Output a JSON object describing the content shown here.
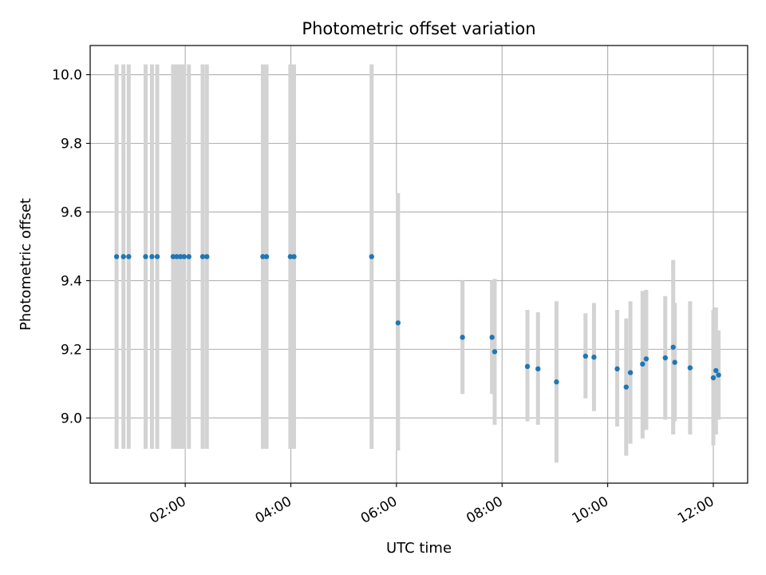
{
  "chart_data": {
    "type": "scatter",
    "title": "Photometric offset variation",
    "xlabel": "UTC time",
    "ylabel": "Photometric offset",
    "x_unit": "hours UTC",
    "xlim": [
      0.2,
      12.65
    ],
    "ylim": [
      8.81,
      10.085
    ],
    "grid": true,
    "x_ticks": [
      {
        "value": 2,
        "label": "02:00"
      },
      {
        "value": 4,
        "label": "04:00"
      },
      {
        "value": 6,
        "label": "06:00"
      },
      {
        "value": 8,
        "label": "08:00"
      },
      {
        "value": 10,
        "label": "10:00"
      },
      {
        "value": 12,
        "label": "12:00"
      }
    ],
    "y_ticks": [
      {
        "value": 9.0,
        "label": "9.0"
      },
      {
        "value": 9.2,
        "label": "9.2"
      },
      {
        "value": 9.4,
        "label": "9.4"
      },
      {
        "value": 9.6,
        "label": "9.6"
      },
      {
        "value": 9.8,
        "label": "9.8"
      },
      {
        "value": 10.0,
        "label": "10.0"
      }
    ],
    "colors": {
      "marker": "#1f77b4",
      "errorbar": "#d3d3d3",
      "grid": "#b0b0b0"
    },
    "points": [
      {
        "x": 0.7,
        "y": 9.47,
        "ymin": 8.91,
        "ymax": 10.03
      },
      {
        "x": 0.83,
        "y": 9.47,
        "ymin": 8.91,
        "ymax": 10.03
      },
      {
        "x": 0.93,
        "y": 9.47,
        "ymin": 8.91,
        "ymax": 10.03
      },
      {
        "x": 1.25,
        "y": 9.47,
        "ymin": 8.91,
        "ymax": 10.03
      },
      {
        "x": 1.37,
        "y": 9.47,
        "ymin": 8.91,
        "ymax": 10.03
      },
      {
        "x": 1.47,
        "y": 9.47,
        "ymin": 8.91,
        "ymax": 10.03
      },
      {
        "x": 1.77,
        "y": 9.47,
        "ymin": 8.91,
        "ymax": 10.03
      },
      {
        "x": 1.84,
        "y": 9.47,
        "ymin": 8.91,
        "ymax": 10.03
      },
      {
        "x": 1.91,
        "y": 9.47,
        "ymin": 8.91,
        "ymax": 10.03
      },
      {
        "x": 1.98,
        "y": 9.47,
        "ymin": 8.91,
        "ymax": 10.03
      },
      {
        "x": 2.07,
        "y": 9.47,
        "ymin": 8.91,
        "ymax": 10.03
      },
      {
        "x": 2.33,
        "y": 9.47,
        "ymin": 8.91,
        "ymax": 10.03
      },
      {
        "x": 2.41,
        "y": 9.47,
        "ymin": 8.91,
        "ymax": 10.03
      },
      {
        "x": 3.47,
        "y": 9.47,
        "ymin": 8.91,
        "ymax": 10.03
      },
      {
        "x": 3.54,
        "y": 9.47,
        "ymin": 8.91,
        "ymax": 10.03
      },
      {
        "x": 3.99,
        "y": 9.47,
        "ymin": 8.91,
        "ymax": 10.03
      },
      {
        "x": 4.06,
        "y": 9.47,
        "ymin": 8.91,
        "ymax": 10.03
      },
      {
        "x": 5.53,
        "y": 9.47,
        "ymin": 8.91,
        "ymax": 10.03
      },
      {
        "x": 6.03,
        "y": 9.277,
        "ymin": 8.905,
        "ymax": 9.655
      },
      {
        "x": 7.25,
        "y": 9.235,
        "ymin": 9.07,
        "ymax": 9.4
      },
      {
        "x": 7.81,
        "y": 9.235,
        "ymin": 9.07,
        "ymax": 9.4
      },
      {
        "x": 7.86,
        "y": 9.193,
        "ymin": 8.98,
        "ymax": 9.405
      },
      {
        "x": 8.48,
        "y": 9.15,
        "ymin": 8.99,
        "ymax": 9.315
      },
      {
        "x": 8.68,
        "y": 9.143,
        "ymin": 8.98,
        "ymax": 9.308
      },
      {
        "x": 9.03,
        "y": 9.105,
        "ymin": 8.87,
        "ymax": 9.34
      },
      {
        "x": 9.58,
        "y": 9.18,
        "ymin": 9.057,
        "ymax": 9.305
      },
      {
        "x": 9.74,
        "y": 9.177,
        "ymin": 9.02,
        "ymax": 9.335
      },
      {
        "x": 10.18,
        "y": 9.143,
        "ymin": 8.975,
        "ymax": 9.315
      },
      {
        "x": 10.35,
        "y": 9.09,
        "ymin": 8.89,
        "ymax": 9.29
      },
      {
        "x": 10.43,
        "y": 9.132,
        "ymin": 8.925,
        "ymax": 9.34
      },
      {
        "x": 10.66,
        "y": 9.157,
        "ymin": 8.94,
        "ymax": 9.37
      },
      {
        "x": 10.73,
        "y": 9.172,
        "ymin": 8.965,
        "ymax": 9.373
      },
      {
        "x": 11.09,
        "y": 9.175,
        "ymin": 8.995,
        "ymax": 9.355
      },
      {
        "x": 11.24,
        "y": 9.206,
        "ymin": 8.952,
        "ymax": 9.46
      },
      {
        "x": 11.27,
        "y": 9.162,
        "ymin": 8.99,
        "ymax": 9.335
      },
      {
        "x": 11.56,
        "y": 9.146,
        "ymin": 8.952,
        "ymax": 9.34
      },
      {
        "x": 12.0,
        "y": 9.117,
        "ymin": 8.92,
        "ymax": 9.315
      },
      {
        "x": 12.05,
        "y": 9.138,
        "ymin": 8.952,
        "ymax": 9.322
      },
      {
        "x": 12.1,
        "y": 9.125,
        "ymin": 8.995,
        "ymax": 9.255
      }
    ]
  }
}
